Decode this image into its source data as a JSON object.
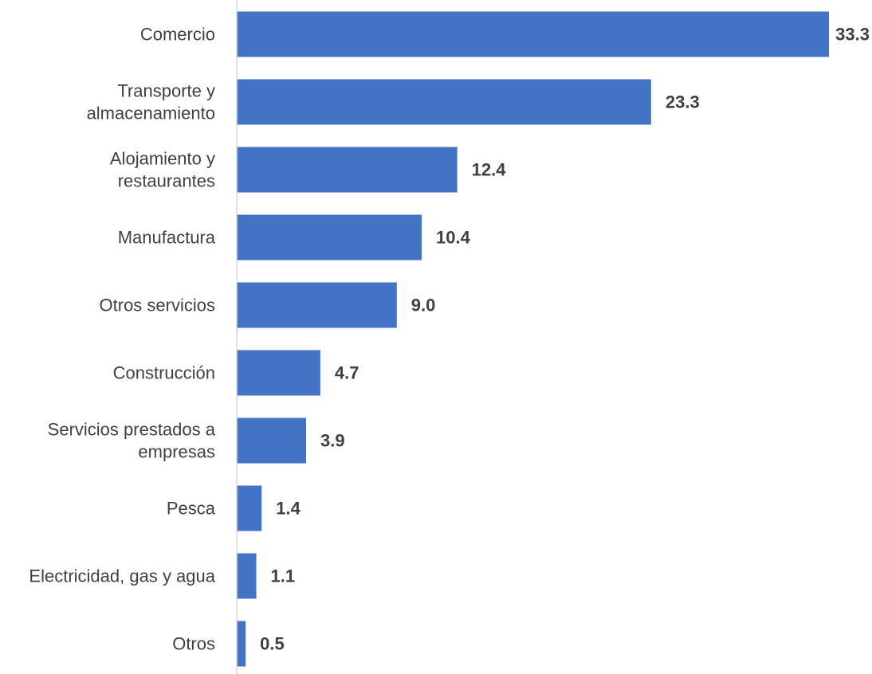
{
  "chart_data": {
    "type": "bar",
    "orientation": "horizontal",
    "categories": [
      "Comercio",
      "Transporte y almacenamiento",
      "Alojamiento y restaurantes",
      "Manufactura",
      "Otros servicios",
      "Construcción",
      "Servicios prestados a empresas",
      "Pesca",
      "Electricidad, gas y agua",
      "Otros"
    ],
    "category_lines": [
      [
        "Comercio"
      ],
      [
        "Transporte y",
        "almacenamiento"
      ],
      [
        "Alojamiento y",
        "restaurantes"
      ],
      [
        "Manufactura"
      ],
      [
        "Otros servicios"
      ],
      [
        "Construcción"
      ],
      [
        "Servicios prestados a",
        "empresas"
      ],
      [
        "Pesca"
      ],
      [
        "Electricidad, gas y agua"
      ],
      [
        "Otros"
      ]
    ],
    "values": [
      33.3,
      23.3,
      12.4,
      10.4,
      9.0,
      4.7,
      3.9,
      1.4,
      1.1,
      0.5
    ],
    "value_labels": [
      "33.3",
      "23.3",
      "12.4",
      "10.4",
      "9.0",
      "4.7",
      "3.9",
      "1.4",
      "1.1",
      "0.5"
    ],
    "title": "",
    "xlabel": "",
    "ylabel": "",
    "grid": false,
    "legend": "none",
    "bar_color": "#4472C4",
    "axis_color": "#D9D9D9"
  }
}
